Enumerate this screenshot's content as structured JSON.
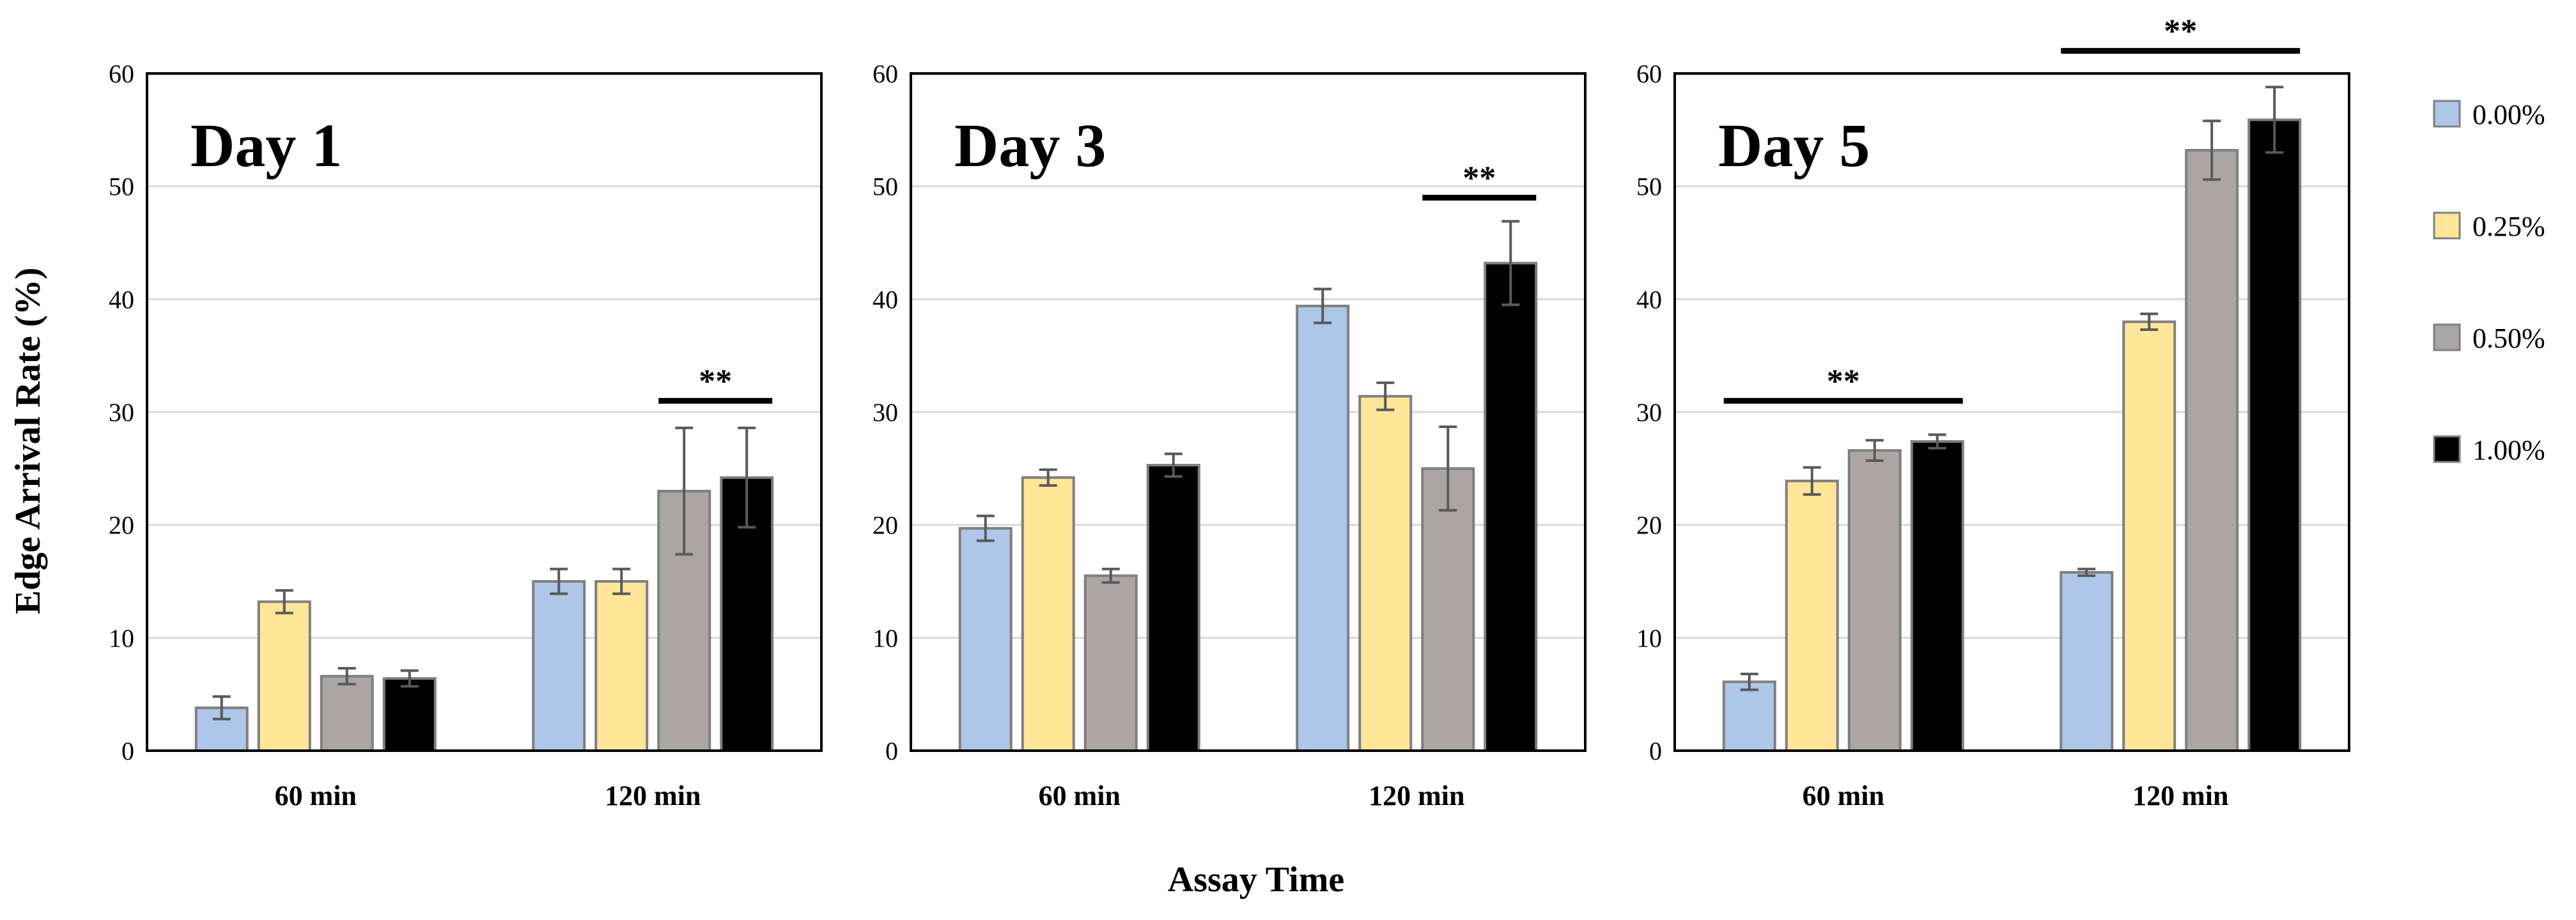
{
  "figure": {
    "ylabel": "Edge Arrival Rate (%)",
    "xlabel": "Assay Time"
  },
  "legend": [
    {
      "label": "0.00%",
      "color": "#aec6e8"
    },
    {
      "label": "0.25%",
      "color": "#ffe699"
    },
    {
      "label": "0.50%",
      "color": "#aba6a4"
    },
    {
      "label": "1.00%",
      "color": "#000000"
    }
  ],
  "chart_data": [
    {
      "type": "bar",
      "title": "Day 1",
      "categories": [
        "60 min",
        "120 min"
      ],
      "ylim": [
        0,
        60
      ],
      "yticks": [
        0,
        10,
        20,
        30,
        40,
        50,
        60
      ],
      "series": [
        {
          "name": "0.00%",
          "values": [
            3.8,
            15.0
          ],
          "errors": [
            1.0,
            1.1
          ]
        },
        {
          "name": "0.25%",
          "values": [
            13.2,
            15.0
          ],
          "errors": [
            1.0,
            1.1
          ]
        },
        {
          "name": "0.50%",
          "values": [
            6.6,
            23.0
          ],
          "errors": [
            0.7,
            5.6
          ]
        },
        {
          "name": "1.00%",
          "values": [
            6.4,
            24.2
          ],
          "errors": [
            0.7,
            4.4
          ]
        }
      ],
      "significance": [
        {
          "label": "**",
          "category": 1,
          "from_series": 2,
          "to_series": 3,
          "level": 31.0
        }
      ]
    },
    {
      "type": "bar",
      "title": "Day 3",
      "categories": [
        "60 min",
        "120 min"
      ],
      "ylim": [
        0,
        60
      ],
      "yticks": [
        0,
        10,
        20,
        30,
        40,
        50,
        60
      ],
      "series": [
        {
          "name": "0.00%",
          "values": [
            19.7,
            39.4
          ],
          "errors": [
            1.1,
            1.5
          ]
        },
        {
          "name": "0.25%",
          "values": [
            24.2,
            31.4
          ],
          "errors": [
            0.7,
            1.2
          ]
        },
        {
          "name": "0.50%",
          "values": [
            15.5,
            25.0
          ],
          "errors": [
            0.6,
            3.7
          ]
        },
        {
          "name": "1.00%",
          "values": [
            25.3,
            43.2
          ],
          "errors": [
            1.0,
            3.7
          ]
        }
      ],
      "significance": [
        {
          "label": "**",
          "category": 1,
          "from_series": 2,
          "to_series": 3,
          "level": 49.0
        }
      ]
    },
    {
      "type": "bar",
      "title": "Day 5",
      "categories": [
        "60 min",
        "120 min"
      ],
      "ylim": [
        0,
        60
      ],
      "yticks": [
        0,
        10,
        20,
        30,
        40,
        50,
        60
      ],
      "series": [
        {
          "name": "0.00%",
          "values": [
            6.1,
            15.8
          ],
          "errors": [
            0.7,
            0.3
          ]
        },
        {
          "name": "0.25%",
          "values": [
            23.9,
            38.0
          ],
          "errors": [
            1.2,
            0.7
          ]
        },
        {
          "name": "0.50%",
          "values": [
            26.6,
            53.2
          ],
          "errors": [
            0.9,
            2.6
          ]
        },
        {
          "name": "1.00%",
          "values": [
            27.4,
            55.9
          ],
          "errors": [
            0.6,
            2.9
          ]
        }
      ],
      "significance": [
        {
          "label": "**",
          "category": 0,
          "from_series": 0,
          "to_series": 3,
          "level": 31.0
        },
        {
          "label": "**",
          "category": 1,
          "from_series": 0,
          "to_series": 3,
          "level": 62.0
        }
      ]
    }
  ]
}
